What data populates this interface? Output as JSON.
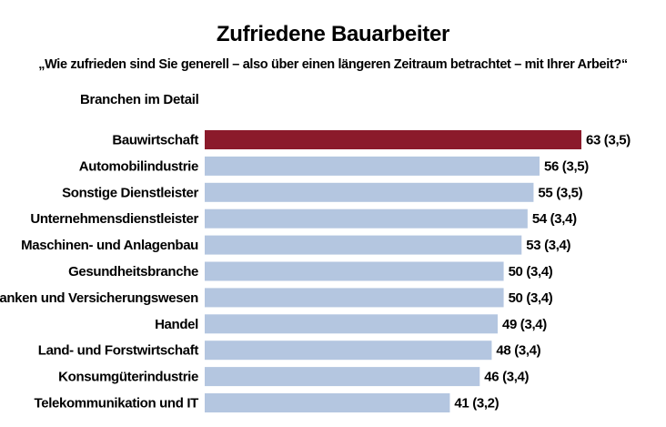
{
  "header": {
    "title": "Zufriedene Bauarbeiter",
    "subtitle": "„Wie zufrieden sind Sie generell – also über einen längeren Zeitraum betrachtet – mit Ihrer Arbeit?“",
    "section_label": "Branchen im Detail"
  },
  "colors": {
    "highlight": "#8b1a2b",
    "bar": "#b4c6e0"
  },
  "chart_data": {
    "type": "bar",
    "orientation": "horizontal",
    "title": "Zufriedene Bauarbeiter",
    "subtitle": "„Wie zufrieden sind Sie generell – also über einen längeren Zeitraum betrachtet – mit Ihrer Arbeit?“",
    "categories": [
      "Bauwirtschaft",
      "Automobilindustrie",
      "Sonstige Dienstleister",
      "Unternehmensdienstleister",
      "Maschinen- und Anlagenbau",
      "Gesundheitsbranche",
      "Banken und Versicherungswesen",
      "Handel",
      "Land- und Forstwirtschaft",
      "Konsumgüterindustrie",
      "Telekommunikation und IT"
    ],
    "values": [
      63,
      56,
      55,
      54,
      53,
      50,
      50,
      49,
      48,
      46,
      41
    ],
    "secondary_values": [
      "3,5",
      "3,5",
      "3,5",
      "3,4",
      "3,4",
      "3,4",
      "3,4",
      "3,4",
      "3,4",
      "3,4",
      "3,2"
    ],
    "value_labels": [
      "63 (3,5)",
      "56 (3,5)",
      "55 (3,5)",
      "54 (3,4)",
      "53 (3,4)",
      "50 (3,4)",
      "50 (3,4)",
      "49 (3,4)",
      "48 (3,4)",
      "46 (3,4)",
      "41 (3,2)"
    ],
    "highlight_index": 0,
    "xlim": [
      0,
      63
    ],
    "grid": false,
    "legend": "none"
  }
}
